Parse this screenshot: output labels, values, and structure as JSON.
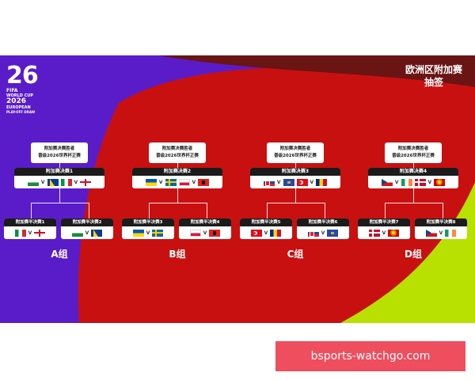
{
  "colors": {
    "purple": "#5a1cc9",
    "red": "#c81010",
    "maroon": "#6a1414",
    "lime": "#b8e000",
    "watermark_bg": "#ee4e5e"
  },
  "logo": {
    "number": "26",
    "fifa": "FIFA",
    "line1": "WORLD CUP",
    "year": "2026",
    "line2": "EUROPEAN",
    "line3": "PLAY-OFF DRAW"
  },
  "title": {
    "line1": "欧洲区附加赛",
    "line2": "抽签"
  },
  "groups": [
    {
      "winner_line1": "附加赛决赛胜者",
      "winner_line2": "晋级2026世界杯正赛",
      "final_label": "附加赛决赛1",
      "final_flags": [
        "wales",
        "bosnia",
        "italy",
        "nireland"
      ],
      "semis": [
        {
          "label": "附加赛半决赛1",
          "flags": [
            "italy",
            "nireland"
          ]
        },
        {
          "label": "附加赛半决赛2",
          "flags": [
            "wales",
            "bosnia"
          ]
        }
      ],
      "group_label": "A组"
    },
    {
      "winner_line1": "附加赛决赛胜者",
      "winner_line2": "晋级2026世界杯正赛",
      "final_label": "附加赛决赛2",
      "final_flags": [
        "ukraine",
        "sweden",
        "poland",
        "albania"
      ],
      "semis": [
        {
          "label": "附加赛半决赛3",
          "flags": [
            "ukraine",
            "sweden"
          ]
        },
        {
          "label": "附加赛半决赛4",
          "flags": [
            "poland",
            "albania"
          ]
        }
      ],
      "group_label": "B组"
    },
    {
      "winner_line1": "附加赛决赛胜者",
      "winner_line2": "晋级2026世界杯正赛",
      "final_label": "附加赛决赛3",
      "final_flags": [
        "slovakia",
        "kosovo",
        "turkey",
        "romania"
      ],
      "semis": [
        {
          "label": "附加赛半决赛5",
          "flags": [
            "turkey",
            "romania"
          ]
        },
        {
          "label": "附加赛半决赛6",
          "flags": [
            "slovakia",
            "kosovo"
          ]
        }
      ],
      "group_label": "C组"
    },
    {
      "winner_line1": "附加赛决赛胜者",
      "winner_line2": "晋级2026世界杯正赛",
      "final_label": "附加赛决赛4",
      "final_flags": [
        "czech",
        "ireland",
        "denmark",
        "nmacedonia"
      ],
      "semis": [
        {
          "label": "附加赛半决赛7",
          "flags": [
            "denmark",
            "nmacedonia"
          ]
        },
        {
          "label": "附加赛半决赛8",
          "flags": [
            "czech",
            "ireland"
          ]
        }
      ],
      "group_label": "D组"
    }
  ],
  "vs_symbol": "V",
  "watermark": "bsports-watchgo.com"
}
